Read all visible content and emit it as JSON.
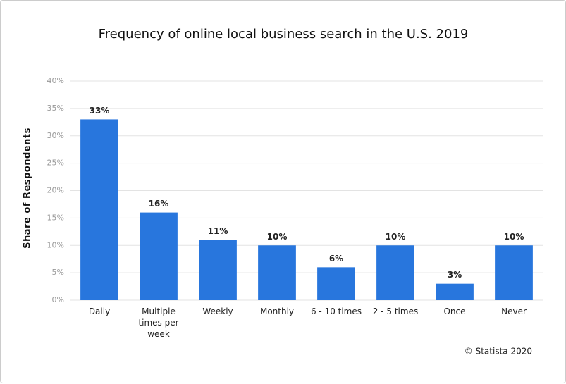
{
  "chart_data": {
    "type": "bar",
    "title": "Frequency of online local business search in the U.S. 2019",
    "y_label": "Share of Respondents",
    "source": "© Statista 2020",
    "categories": [
      "Daily",
      "Multiple times per week",
      "Weekly",
      "Monthly",
      "6 - 10 times",
      "2 - 5 times",
      "Once",
      "Never"
    ],
    "values": [
      33,
      16,
      11,
      10,
      6,
      10,
      3,
      10
    ],
    "value_labels": [
      "33%",
      "16%",
      "11%",
      "10%",
      "6%",
      "10%",
      "3%",
      "10%"
    ],
    "color": "#2876dd",
    "ylim": [
      0,
      40
    ],
    "yticks": [
      {
        "value": 0,
        "label": "0%"
      },
      {
        "value": 5,
        "label": "5%"
      },
      {
        "value": 10,
        "label": "10%"
      },
      {
        "value": 15,
        "label": "15%"
      },
      {
        "value": 20,
        "label": "20%"
      },
      {
        "value": 25,
        "label": "25%"
      },
      {
        "value": 30,
        "label": "30%"
      },
      {
        "value": 35,
        "label": "35%"
      },
      {
        "value": 40,
        "label": "40%"
      }
    ],
    "grid": true
  }
}
